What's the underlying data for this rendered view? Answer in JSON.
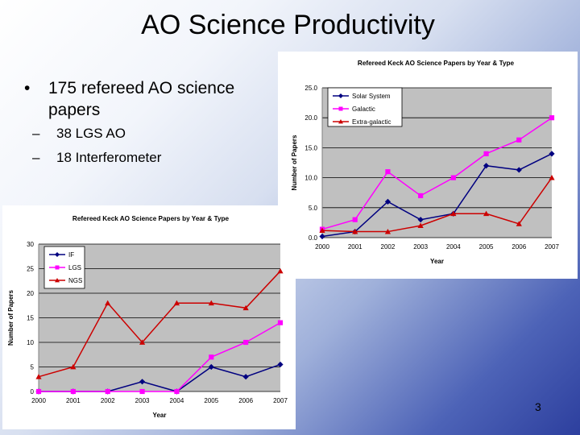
{
  "slide": {
    "title": "AO Science Productivity",
    "bullet": "175 refereed AO science papers",
    "subbullets": [
      "38 LGS AO",
      "18 Interferometer"
    ],
    "page_number": "3"
  },
  "colors": {
    "navy": "#000080",
    "magenta": "#ff00ff",
    "red": "#cc0000",
    "plot_bg": "#c0c0c0"
  },
  "chart_data": [
    {
      "type": "line",
      "title": "Refereed Keck AO Science Papers by Year & Type",
      "xlabel": "Year",
      "ylabel": "Number of Papers",
      "categories": [
        "2000",
        "2001",
        "2002",
        "2003",
        "2004",
        "2005",
        "2006",
        "2007"
      ],
      "ylim": [
        0,
        25
      ],
      "yticks": [
        "0.0",
        "5.0",
        "10.0",
        "15.0",
        "20.0",
        "25.0"
      ],
      "grid": true,
      "legend": "top-left",
      "series": [
        {
          "name": "Solar System",
          "marker": "diamond",
          "color": "#000080",
          "values": [
            0.2,
            1,
            6,
            3,
            4,
            12,
            11.3,
            14
          ]
        },
        {
          "name": "Galactic",
          "marker": "square",
          "color": "#ff00ff",
          "values": [
            1.4,
            3,
            11,
            7,
            10,
            14,
            16.3,
            20
          ]
        },
        {
          "name": "Extra-galactic",
          "marker": "triangle",
          "color": "#cc0000",
          "values": [
            1.2,
            1,
            1,
            2,
            4,
            4,
            2.3,
            10
          ]
        }
      ]
    },
    {
      "type": "line",
      "title": "Refereed Keck AO Science Papers by Year & Type",
      "xlabel": "Year",
      "ylabel": "Number of Papers",
      "categories": [
        "2000",
        "2001",
        "2002",
        "2003",
        "2004",
        "2005",
        "2006",
        "2007"
      ],
      "ylim": [
        0,
        30
      ],
      "yticks": [
        "0",
        "5",
        "10",
        "15",
        "20",
        "25",
        "30"
      ],
      "grid": true,
      "legend": "top-left",
      "series": [
        {
          "name": "IF",
          "marker": "diamond",
          "color": "#000080",
          "values": [
            0,
            0,
            0,
            2,
            0,
            5,
            3,
            5.5
          ]
        },
        {
          "name": "LGS",
          "marker": "square",
          "color": "#ff00ff",
          "values": [
            0,
            0,
            0,
            0,
            0,
            7,
            10,
            14
          ]
        },
        {
          "name": "NGS",
          "marker": "triangle",
          "color": "#cc0000",
          "values": [
            3,
            5,
            18,
            10,
            18,
            18,
            17,
            24.5
          ]
        }
      ]
    }
  ]
}
